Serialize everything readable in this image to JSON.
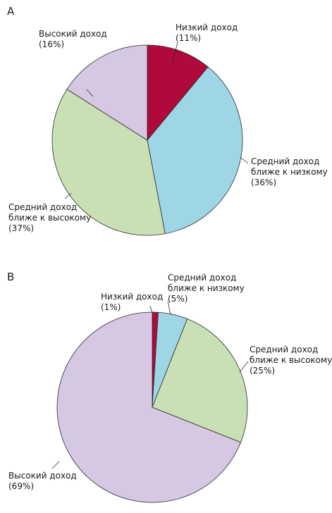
{
  "chart_data": [
    {
      "type": "pie",
      "panel": "A",
      "slices": [
        {
          "lines": [
            "Низкий доход",
            "(11%)"
          ],
          "value": 11,
          "color": "#b0093c"
        },
        {
          "lines": [
            "Средний доход",
            "ближе к низкому",
            "(36%)"
          ],
          "value": 36,
          "color": "#9fd6e6"
        },
        {
          "lines": [
            "Средний доход",
            "ближе к высокому",
            "(37%)"
          ],
          "value": 37,
          "color": "#c9e0b5"
        },
        {
          "lines": [
            "Высокий доход",
            "(16%)"
          ],
          "value": 16,
          "color": "#d6c8e2"
        }
      ]
    },
    {
      "type": "pie",
      "panel": "B",
      "slices": [
        {
          "lines": [
            "Низкий доход",
            "(1%)"
          ],
          "value": 1,
          "color": "#b0093c"
        },
        {
          "lines": [
            "Средний доход",
            "ближе к низкому",
            "(5%)"
          ],
          "value": 5,
          "color": "#9fd6e6"
        },
        {
          "lines": [
            "Средний доход",
            "ближе к высокому",
            "(25%)"
          ],
          "value": 25,
          "color": "#c9e0b5"
        },
        {
          "lines": [
            "Высокий доход",
            "(69%)"
          ],
          "value": 69,
          "color": "#d6c8e2"
        }
      ]
    }
  ]
}
